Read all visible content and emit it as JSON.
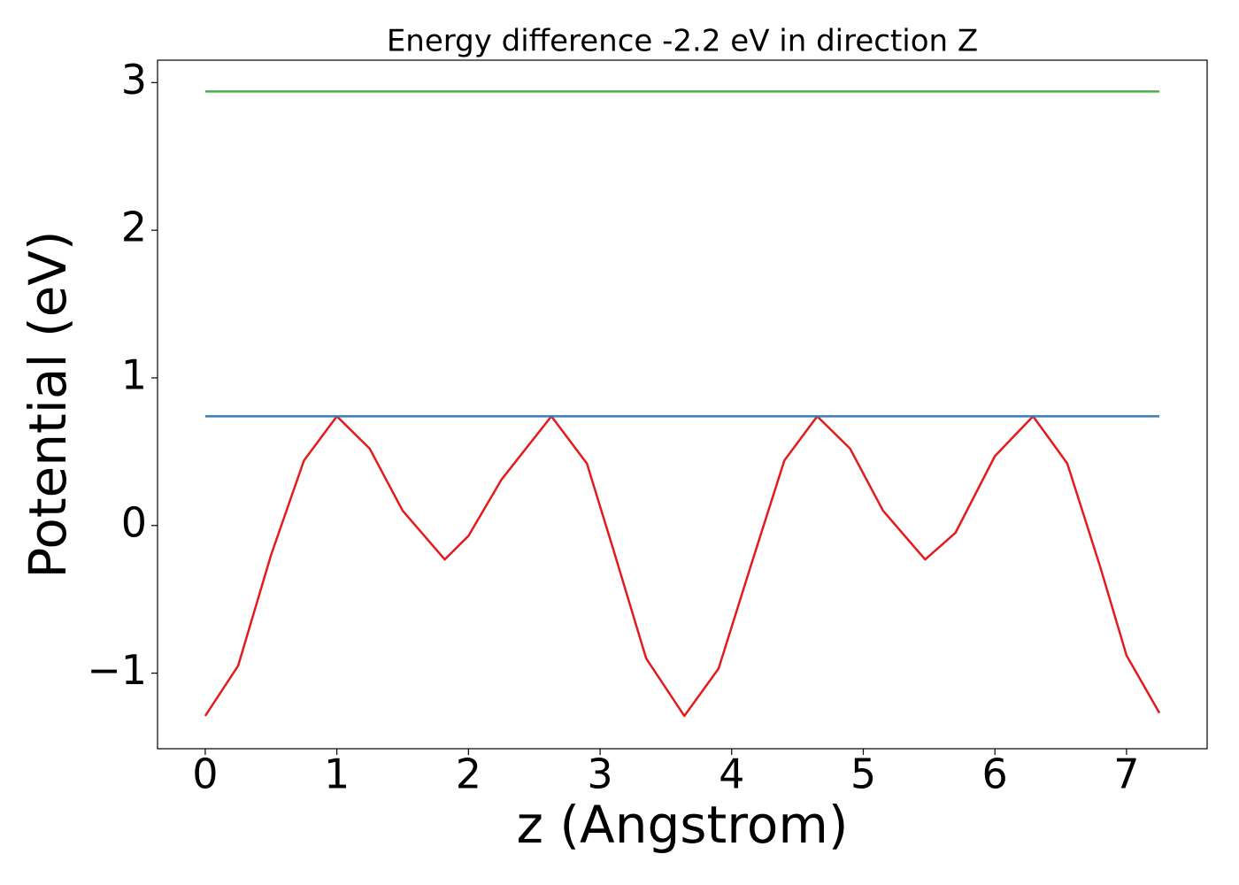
{
  "chart_data": {
    "type": "line",
    "title": "Energy difference -2.2 eV in direction Z",
    "xlabel": "z (Angstrom)",
    "ylabel": "Potential (eV)",
    "xlim": [
      -0.3625,
      7.6125
    ],
    "ylim": [
      -1.512,
      3.152
    ],
    "xticks": [
      0,
      1,
      2,
      3,
      4,
      5,
      6,
      7
    ],
    "yticks": [
      {
        "value": -1,
        "label": "−1"
      },
      0,
      1,
      2,
      3
    ],
    "grid": false,
    "series": [
      {
        "color": "#e41a1c",
        "x": [
          0,
          0.25,
          0.5,
          0.75,
          1.0,
          1.25,
          1.5,
          1.82,
          2.0,
          2.25,
          2.63,
          2.9,
          3.1,
          3.35,
          3.64,
          3.9,
          4.15,
          4.4,
          4.65,
          4.9,
          5.15,
          5.47,
          5.7,
          6.0,
          6.29,
          6.55,
          6.8,
          7.0,
          7.25
        ],
        "values": [
          -1.29,
          -0.95,
          -0.2,
          0.44,
          0.74,
          0.52,
          0.1,
          -0.23,
          -0.07,
          0.31,
          0.74,
          0.42,
          -0.16,
          -0.9,
          -1.29,
          -0.97,
          -0.26,
          0.44,
          0.74,
          0.52,
          0.1,
          -0.23,
          -0.05,
          0.47,
          0.74,
          0.42,
          -0.28,
          -0.88,
          -1.27
        ]
      },
      {
        "color": "#377eb8",
        "x": [
          0,
          7.25
        ],
        "values": [
          0.74,
          0.74
        ]
      },
      {
        "color": "#4daf4a",
        "x": [
          0,
          7.25
        ],
        "values": [
          2.94,
          2.94
        ]
      }
    ]
  }
}
